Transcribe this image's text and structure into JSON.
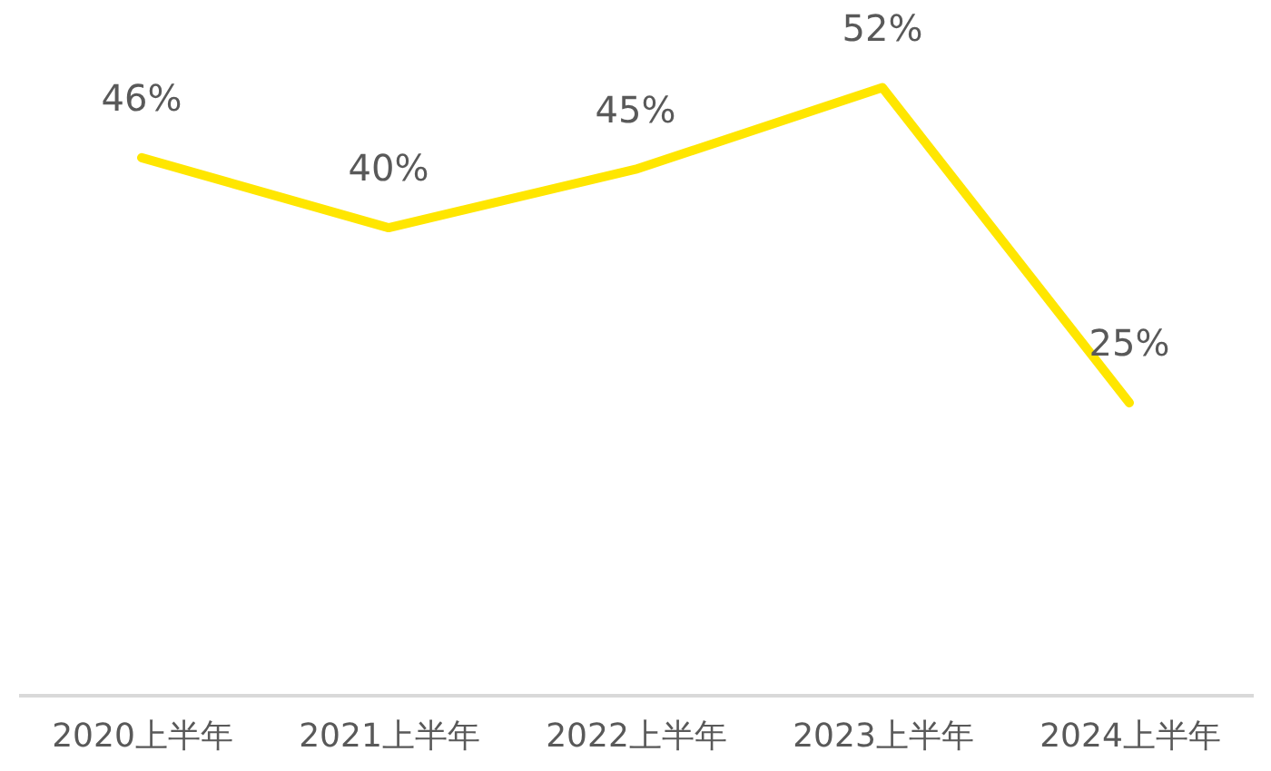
{
  "chart_data": {
    "type": "line",
    "categories": [
      "2020上半年",
      "2021上半年",
      "2022上半年",
      "2023上半年",
      "2024上半年"
    ],
    "series": [
      {
        "color": "#ffe600",
        "values": [
          46,
          40,
          45,
          52,
          25
        ],
        "value_labels": [
          "46%",
          "40%",
          "45%",
          "52%",
          "25%"
        ]
      }
    ],
    "tick_labels": "x",
    "grid": false,
    "marker": "none",
    "line_style": "solid"
  }
}
